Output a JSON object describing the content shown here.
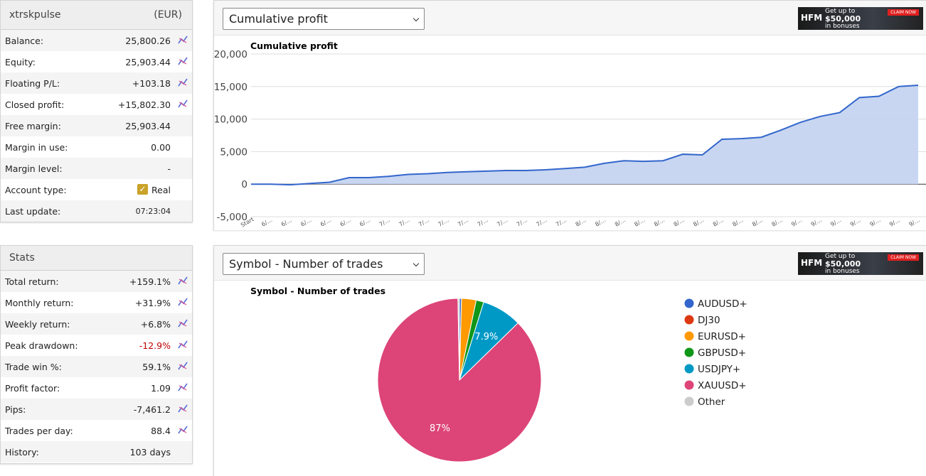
{
  "account": {
    "name": "xtrskpulse",
    "currency": "(EUR)",
    "rows": [
      {
        "label": "Balance:",
        "value": "25,800.26",
        "chart_link": true
      },
      {
        "label": "Equity:",
        "value": "25,903.44",
        "chart_link": true
      },
      {
        "label": "Floating P/L:",
        "value": "+103.18",
        "chart_link": true
      },
      {
        "label": "Closed profit:",
        "value": "+15,802.30",
        "chart_link": true
      },
      {
        "label": "Free margin:",
        "value": "25,903.44"
      },
      {
        "label": "Margin in use:",
        "value": "0.00"
      },
      {
        "label": "Margin level:",
        "value": "-"
      },
      {
        "label": "Account type:",
        "value": "Real",
        "checkbox": true
      },
      {
        "label": "Last update:",
        "value": "07:23:04",
        "small": true
      }
    ]
  },
  "stats": {
    "title": "Stats",
    "rows": [
      {
        "label": "Total return:",
        "value": "+159.1%",
        "chart_link": true
      },
      {
        "label": "Monthly return:",
        "value": "+31.9%",
        "chart_link": true
      },
      {
        "label": "Weekly return:",
        "value": "+6.8%",
        "chart_link": true
      },
      {
        "label": "Peak drawdown:",
        "value": "-12.9%",
        "chart_link": true,
        "color": "#c00000"
      },
      {
        "label": "Trade win %:",
        "value": "59.1%",
        "chart_link": true
      },
      {
        "label": "Profit factor:",
        "value": "1.09",
        "chart_link": true
      },
      {
        "label": "Pips:",
        "value": "-7,461.2",
        "chart_link": true
      },
      {
        "label": "Trades per day:",
        "value": "88.4",
        "chart_link": true
      },
      {
        "label": "History:",
        "value": "103 days"
      }
    ]
  },
  "ad": {
    "brand": "HFM",
    "line1": "Get up to",
    "line2": "$50,000",
    "line3": "in bonuses",
    "button": "CLAIM NOW"
  },
  "chart_data": [
    {
      "type": "line",
      "selector": "Cumulative profit",
      "title": "Cumulative profit",
      "color": "#3366cc",
      "fill": "#c2d1f0",
      "categories": [
        "Start",
        "6/…",
        "6/…",
        "6/…",
        "6/…",
        "6/…",
        "6/…",
        "7/…",
        "7/…",
        "7/…",
        "7/…",
        "7/…",
        "7/…",
        "7/…",
        "7/…",
        "7/…",
        "7/…",
        "8/…",
        "8/…",
        "8/…",
        "8/…",
        "8/…",
        "8/…",
        "8/…",
        "8/…",
        "8/…",
        "8/…",
        "8/…",
        "9/…",
        "9/…",
        "9/…",
        "9/…",
        "9/…",
        "9/…",
        "9/…"
      ],
      "values": [
        0,
        0,
        -100,
        100,
        300,
        1000,
        1000,
        1200,
        1500,
        1600,
        1800,
        1900,
        2000,
        2100,
        2100,
        2200,
        2400,
        2600,
        3200,
        3600,
        3500,
        3600,
        4600,
        4500,
        6900,
        7000,
        7200,
        8300,
        9500,
        10400,
        11000,
        13300,
        13500,
        15000,
        15200
      ],
      "ylim": [
        -5000,
        20000
      ],
      "yticks": [
        {
          "value": -5000,
          "label": "-5,000"
        },
        0,
        {
          "value": 5000,
          "label": "5,000"
        },
        {
          "value": 10000,
          "label": "10,000"
        },
        {
          "value": 15000,
          "label": "15,000"
        },
        {
          "value": 20000,
          "label": "20,000"
        }
      ],
      "grid": true
    },
    {
      "type": "pie",
      "selector": "Symbol - Number of trades",
      "title": "Symbol - Number of trades",
      "categories": [
        "AUDUSD+",
        "DJ30",
        "EURUSD+",
        "GBPUSD+",
        "USDJPY+",
        "XAUUSD+",
        "Other"
      ],
      "values": [
        0.4,
        0,
        2.9,
        1.5,
        7.9,
        87,
        0.3
      ],
      "value_labels": [
        null,
        null,
        null,
        null,
        "7.9%",
        "87%",
        null
      ],
      "colors": [
        "#3366cc",
        "#dc3912",
        "#ff9900",
        "#109618",
        "#0099c6",
        "#dd4477",
        "#cccccc"
      ],
      "legend": "right"
    }
  ]
}
